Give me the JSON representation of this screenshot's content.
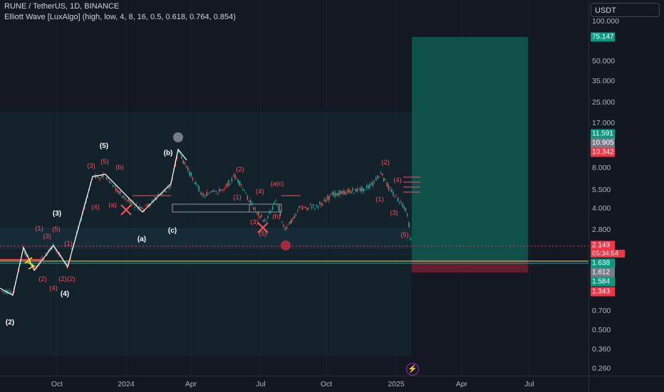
{
  "header": {
    "title": "RUNE / TetherUS, 1D, BINANCE",
    "indicator": "Elliott Wave [LuxAlgo] (high, low, 4, 8, 16, 0.5, 0.618, 0.764, 0.854)",
    "currency": "USDT"
  },
  "price_axis": {
    "scale": "log",
    "ticks": [
      "100.000",
      "50.000",
      "35.000",
      "25.000",
      "17.000",
      "8.000",
      "5.500",
      "4.000",
      "2.800",
      "0.700",
      "0.500",
      "0.360",
      "0.260"
    ]
  },
  "price_badges": [
    {
      "value": "75.147",
      "color": "#089981"
    },
    {
      "value": "11.591",
      "color": "#089981"
    },
    {
      "value": "10.905",
      "color": "#787b86"
    },
    {
      "value": "10.342",
      "color": "#f23645"
    },
    {
      "value": "2.149",
      "color": "#f23645"
    },
    {
      "value": "1.638",
      "color": "#089981"
    },
    {
      "value": "1.612",
      "color": "#787b86"
    },
    {
      "value": "1.584",
      "color": "#089981"
    },
    {
      "value": "1.343",
      "color": "#f23645"
    }
  ],
  "countdown": "05:34:54",
  "time_axis": [
    "Oct",
    "2024",
    "Apr",
    "Jul",
    "Oct",
    "2025",
    "Apr",
    "Jul"
  ],
  "wave_labels": [
    {
      "text": "(2)",
      "color": "#ffffff"
    },
    {
      "text": "(3)",
      "color": "#ffffff"
    },
    {
      "text": "(4)",
      "color": "#ffffff"
    },
    {
      "text": "(5)",
      "color": "#ffffff"
    },
    {
      "text": "(a)",
      "color": "#ffffff"
    },
    {
      "text": "(b)",
      "color": "#ffffff"
    },
    {
      "text": "(c)",
      "color": "#ffffff"
    },
    {
      "text": "(1)",
      "color": "#f7525f"
    },
    {
      "text": "(2)",
      "color": "#f7525f"
    },
    {
      "text": "(3)",
      "color": "#f7525f"
    },
    {
      "text": "(4)",
      "color": "#f7525f"
    },
    {
      "text": "(5)",
      "color": "#f7525f"
    },
    {
      "text": "(a)",
      "color": "#f7525f"
    },
    {
      "text": "(b)",
      "color": "#f7525f"
    },
    {
      "text": "(a|c)",
      "color": "#f7525f"
    }
  ],
  "colors": {
    "background": "#131722",
    "up": "#26a69a",
    "down": "#ef5350",
    "target_zone": "#0b6f5c",
    "stop_zone": "#7a2230",
    "wave_line": "#ffffff"
  },
  "icons": {
    "bolt": "lightning-icon"
  }
}
